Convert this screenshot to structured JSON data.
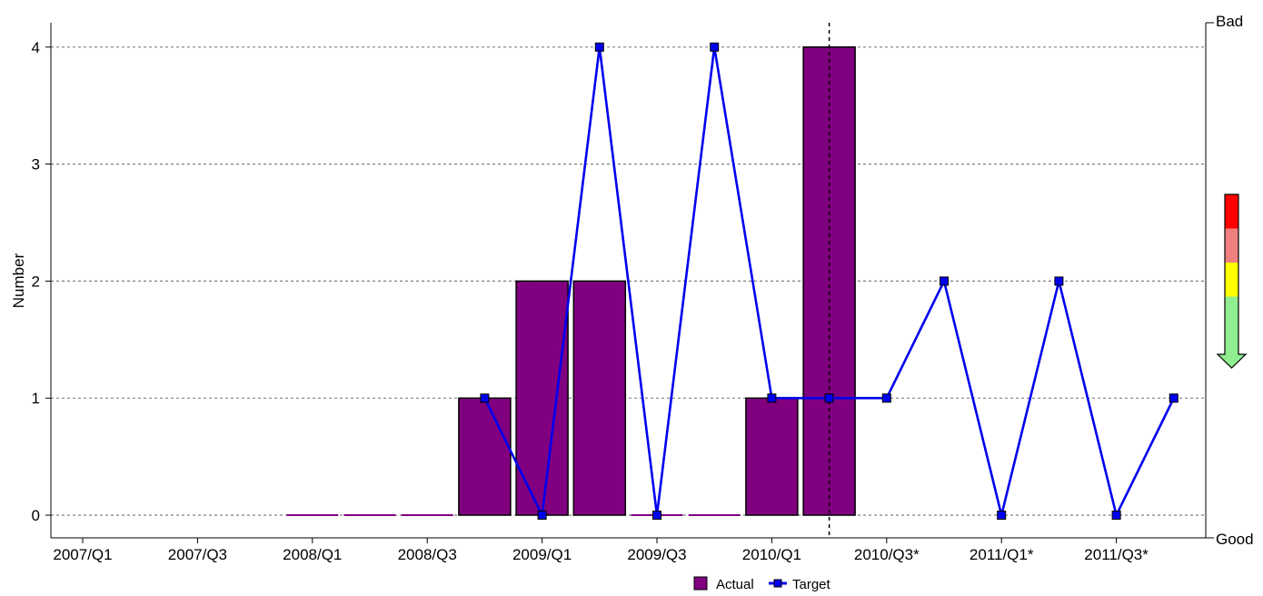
{
  "chart_data": {
    "type": "bar",
    "title": "",
    "xlabel": "",
    "ylabel": "Number",
    "ylim": [
      -0.2,
      4.2
    ],
    "yticks": [
      0,
      1,
      2,
      3,
      4
    ],
    "grid": "horizontal dotted",
    "periods": [
      "2007/Q1",
      "2007/Q2",
      "2007/Q3",
      "2007/Q4",
      "2008/Q1",
      "2008/Q2",
      "2008/Q3",
      "2008/Q4",
      "2009/Q1",
      "2009/Q2",
      "2009/Q3",
      "2009/Q4",
      "2010/Q1",
      "2010/Q2",
      "2010/Q3*",
      "2010/Q4*",
      "2011/Q1*",
      "2011/Q2*",
      "2011/Q3*",
      "2011/Q4*"
    ],
    "xtick_labels": [
      "2007/Q1",
      "2007/Q3",
      "2008/Q1",
      "2008/Q3",
      "2009/Q1",
      "2009/Q3",
      "2010/Q1",
      "2010/Q3*",
      "2011/Q1*",
      "2011/Q3*"
    ],
    "series": [
      {
        "name": "Actual",
        "kind": "bar",
        "color": "#800080",
        "values": [
          null,
          null,
          null,
          null,
          0,
          0,
          0,
          1,
          2,
          2,
          0,
          0,
          1,
          4,
          null,
          null,
          null,
          null,
          null,
          null
        ]
      },
      {
        "name": "Target",
        "kind": "line",
        "color": "#0000ee",
        "values": [
          null,
          null,
          null,
          null,
          null,
          null,
          null,
          1,
          0,
          4,
          0,
          4,
          1,
          1,
          1,
          2,
          0,
          2,
          0,
          1
        ]
      }
    ],
    "current_period_marker": "2010/Q2",
    "legend_position": "bottom-center",
    "scale_indicator": {
      "top_label": "Bad",
      "bottom_label": "Good",
      "colors": [
        "#ff0000",
        "#f08080",
        "#ffff00",
        "#90ee90"
      ],
      "direction": "down"
    }
  }
}
